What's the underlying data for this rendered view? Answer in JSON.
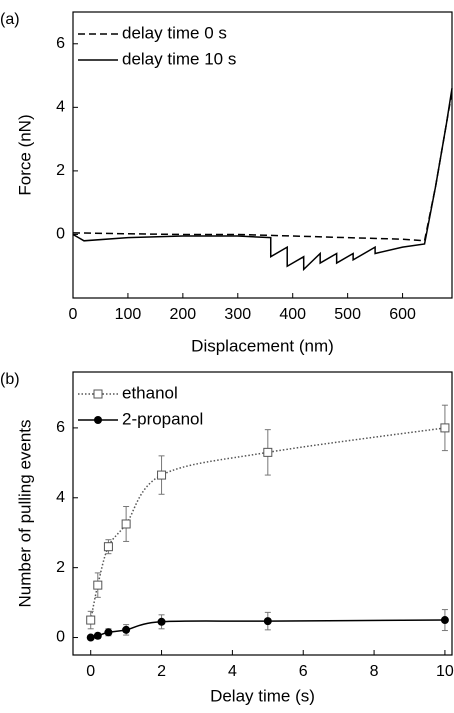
{
  "chart_data": [
    {
      "type": "line",
      "panel_label": "(a)",
      "xlabel": "Displacement (nm)",
      "ylabel": "Force (nN)",
      "xlim": [
        0,
        690
      ],
      "xticks": [
        0,
        100,
        200,
        300,
        400,
        500,
        600
      ],
      "ylim": [
        -2,
        7
      ],
      "yticks": [
        0,
        2,
        4,
        6
      ],
      "legend": "upper left",
      "series": [
        {
          "name": "delay time 0 s",
          "color": "#000000",
          "dash": "dashed",
          "x": [
            0,
            100,
            200,
            300,
            400,
            500,
            600,
            640,
            660,
            680,
            690
          ],
          "values": [
            0.05,
            0.02,
            0,
            0,
            -0.05,
            -0.1,
            -0.15,
            -0.2,
            1.5,
            3.5,
            4.5
          ]
        },
        {
          "name": "delay time 10 s",
          "color": "#000000",
          "dash": "solid",
          "x": [
            0,
            10,
            20,
            100,
            200,
            300,
            360,
            360,
            390,
            390,
            420,
            420,
            450,
            450,
            480,
            480,
            510,
            510,
            550,
            550,
            600,
            640,
            660,
            680,
            690
          ],
          "values": [
            0,
            -0.1,
            -0.2,
            -0.1,
            -0.05,
            -0.05,
            -0.1,
            -0.7,
            -0.4,
            -1.0,
            -0.7,
            -1.1,
            -0.6,
            -0.9,
            -0.6,
            -0.9,
            -0.6,
            -0.8,
            -0.4,
            -0.6,
            -0.4,
            -0.3,
            1.5,
            3.5,
            4.6
          ]
        }
      ]
    },
    {
      "type": "scatter",
      "panel_label": "(b)",
      "xlabel": "Delay time (s)",
      "ylabel": "Number of pulling events",
      "xlim": [
        -0.5,
        10.2
      ],
      "xticks": [
        0,
        2,
        4,
        6,
        8,
        10
      ],
      "ylim": [
        -0.5,
        7.6
      ],
      "yticks": [
        0,
        2,
        4,
        6
      ],
      "legend": "upper left",
      "series": [
        {
          "name": "ethanol",
          "color": "#555555",
          "dash": "dotted",
          "marker": "square-open",
          "x": [
            0,
            0.2,
            0.5,
            1,
            2,
            5,
            10
          ],
          "values": [
            0.5,
            1.5,
            2.6,
            3.25,
            4.65,
            5.3,
            6.0
          ],
          "errors": [
            0.25,
            0.35,
            0.2,
            0.5,
            0.55,
            0.65,
            0.65
          ]
        },
        {
          "name": "2-propanol",
          "color": "#000000",
          "dash": "solid",
          "marker": "circle-filled",
          "x": [
            0,
            0.2,
            0.5,
            1,
            2,
            5,
            10
          ],
          "values": [
            0,
            0.05,
            0.15,
            0.22,
            0.45,
            0.47,
            0.5
          ],
          "errors": [
            0.05,
            0.08,
            0.1,
            0.15,
            0.2,
            0.25,
            0.3
          ]
        }
      ]
    }
  ]
}
